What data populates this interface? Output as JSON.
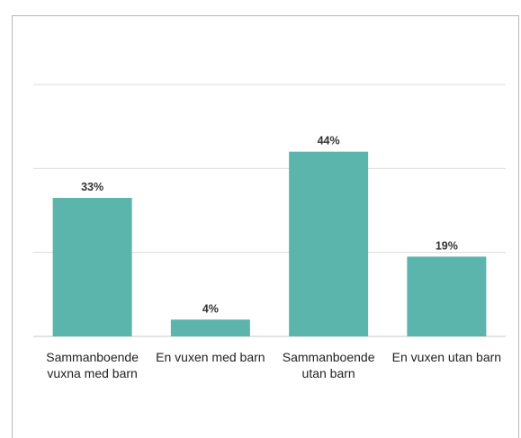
{
  "chart_data": {
    "type": "bar",
    "categories": [
      [
        "Sammanboende",
        "vuxna med barn"
      ],
      [
        "En vuxen med barn"
      ],
      [
        "Sammanboende",
        "utan barn"
      ],
      [
        "En vuxen utan barn"
      ]
    ],
    "values": [
      33,
      4,
      44,
      19
    ],
    "value_labels": [
      "33%",
      "4%",
      "44%",
      "19%"
    ],
    "ylim": [
      0,
      60
    ],
    "grid": true,
    "legend": "none",
    "title": "",
    "xlabel": "",
    "ylabel": "",
    "colors": {
      "bar": "#5bb5ad",
      "grid": "#dcdcdc",
      "baseline": "#c8c8c8"
    }
  }
}
